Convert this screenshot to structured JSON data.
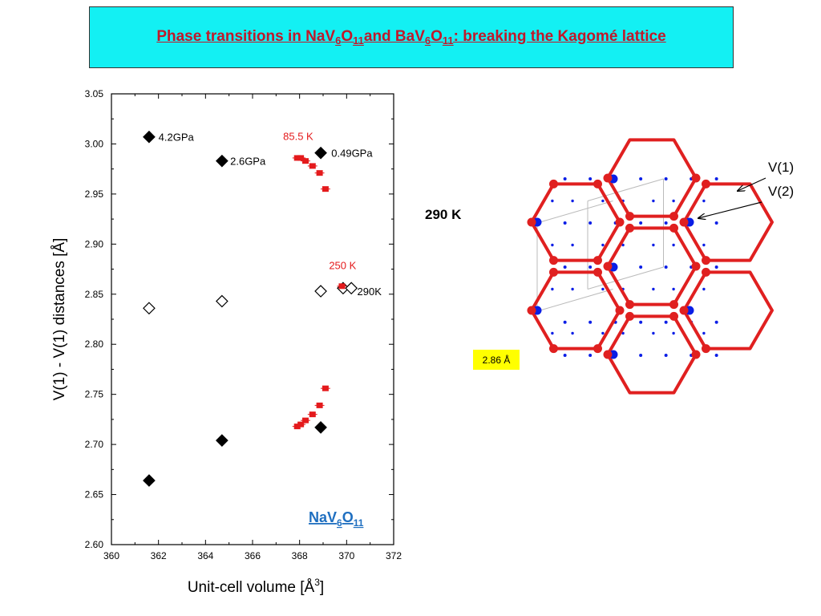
{
  "title": {
    "segments": [
      {
        "t": "Phase transitions in NaV"
      },
      {
        "t": "6",
        "sub": true
      },
      {
        "t": "O"
      },
      {
        "t": "11",
        "sub": true
      },
      {
        "t": "and BaV"
      },
      {
        "t": "6",
        "sub": true
      },
      {
        "t": "O"
      },
      {
        "t": "11",
        "sub": true
      },
      {
        "t": ": breaking the Kagomé lattice"
      }
    ]
  },
  "chart_data": {
    "type": "scatter",
    "xlabel": "Unit-cell volume [Å",
    "xlabel_sup": "3",
    "xlabel_tail": "]",
    "ylabel": "V(1) - V(1) distances [Å]",
    "xlim": [
      360,
      372
    ],
    "ylim": [
      2.6,
      3.05
    ],
    "xticks": [
      "360",
      "362",
      "364",
      "366",
      "368",
      "370",
      "372"
    ],
    "yticks": [
      "2.60",
      "2.65",
      "2.70",
      "2.75",
      "2.80",
      "2.85",
      "2.90",
      "2.95",
      "3.00",
      "3.05"
    ],
    "compound_label": {
      "base": "NaV",
      "s1": "6",
      "mid": "O",
      "s2": "11"
    },
    "series": [
      {
        "marker": "diamond-filled",
        "color": "#000000",
        "points": [
          {
            "x": 361.6,
            "y": 3.007,
            "err": 0.016
          },
          {
            "x": 364.7,
            "y": 2.983,
            "err": 0.017
          },
          {
            "x": 368.9,
            "y": 2.991,
            "err": 0.016
          },
          {
            "x": 361.6,
            "y": 2.664,
            "err": 0.014
          },
          {
            "x": 364.7,
            "y": 2.704,
            "err": 0.017
          },
          {
            "x": 368.9,
            "y": 2.717,
            "err": 0.016
          }
        ]
      },
      {
        "marker": "diamond-open",
        "color": "#000000",
        "points": [
          {
            "x": 361.6,
            "y": 2.836
          },
          {
            "x": 364.7,
            "y": 2.843
          },
          {
            "x": 368.9,
            "y": 2.853
          },
          {
            "x": 369.85,
            "y": 2.856
          },
          {
            "x": 370.2,
            "y": 2.856
          }
        ]
      },
      {
        "marker": "square-filled",
        "color": "#e41a1c",
        "points": [
          {
            "x": 367.9,
            "y": 2.986
          },
          {
            "x": 368.05,
            "y": 2.986
          },
          {
            "x": 368.25,
            "y": 2.983
          },
          {
            "x": 368.55,
            "y": 2.978
          },
          {
            "x": 368.85,
            "y": 2.971
          },
          {
            "x": 369.1,
            "y": 2.955
          },
          {
            "x": 367.9,
            "y": 2.718
          },
          {
            "x": 368.05,
            "y": 2.72
          },
          {
            "x": 368.25,
            "y": 2.724
          },
          {
            "x": 368.55,
            "y": 2.73
          },
          {
            "x": 368.85,
            "y": 2.739
          },
          {
            "x": 369.1,
            "y": 2.756
          },
          {
            "x": 369.8,
            "y": 2.858,
            "err": 0.013
          }
        ]
      }
    ],
    "annotations": [
      {
        "text": "4.2GPa",
        "x": 362.0,
        "y": 3.007,
        "color": "#000000"
      },
      {
        "text": "2.6GPa",
        "x": 365.05,
        "y": 2.983,
        "color": "#000000"
      },
      {
        "text": "0.49GPa",
        "x": 369.35,
        "y": 2.991,
        "color": "#000000"
      },
      {
        "text": "85.5 K",
        "x": 367.3,
        "y": 3.008,
        "color": "#e41a1c"
      },
      {
        "text": "250 K",
        "x": 369.25,
        "y": 2.879,
        "color": "#e41a1c"
      },
      {
        "text": "290K",
        "x": 370.45,
        "y": 2.853,
        "color": "#000000"
      }
    ]
  },
  "lattice": {
    "temperature_label": "290 K",
    "v1_label": "V(1)",
    "v2_label": "V(2)",
    "scale_label": "2.86 Å",
    "colors": {
      "bond": "#e02020",
      "atom_v1": "#e02020",
      "atom_v2": "#0a1ee6",
      "cell": "#bbbbbb"
    }
  }
}
